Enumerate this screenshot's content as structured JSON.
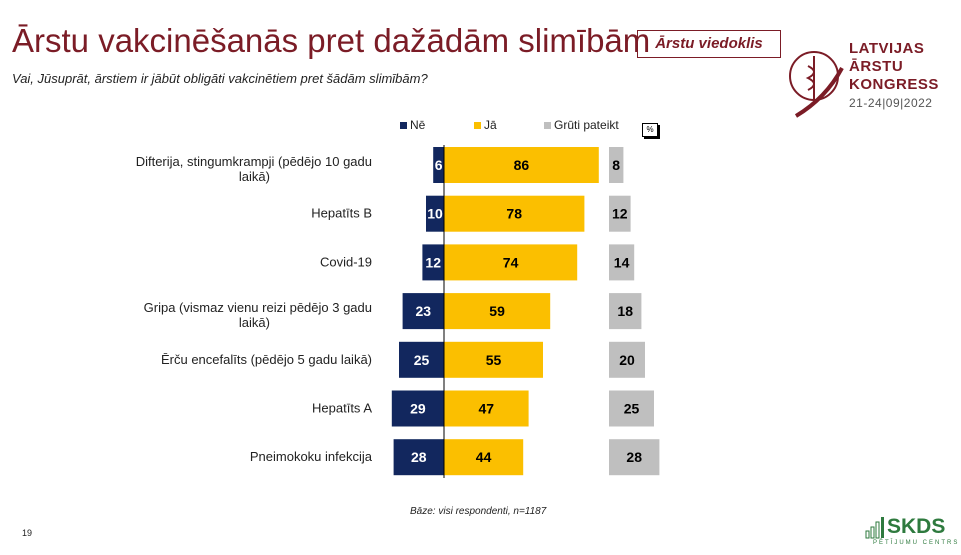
{
  "header": {
    "title": "Ārstu vakcinēšanās pret dažādām slimībām",
    "badge": "Ārstu viedoklis",
    "question": "Vai, Jūsuprāt, ārstiem ir jābūt obligāti vakcinētiem pret šādām slimībām?"
  },
  "logo": {
    "line1": "LATVIJAS",
    "line2": "ĀRSTU",
    "line3": "KONGRESS",
    "dates": "21-24|09|2022"
  },
  "footer": {
    "base": "Bāze: visi respondenti, n=1187",
    "page": "19",
    "brand": "SKDS",
    "brand_sub": "PĒTĪJUMU CENTRS"
  },
  "chart_data": {
    "type": "bar",
    "unit": "%",
    "categories": [
      "Difterija, stingumkrampji (pēdējo 10 gadu laikā)",
      "Hepatīts B",
      "Covid-19",
      "Gripa (vismaz vienu reizi pēdējo 3 gadu laikā)",
      "Ērču encefalīts (pēdējo 5 gadu laikā)",
      "Hepatīts A",
      "Pneimokoku infekcija"
    ],
    "series": [
      {
        "name": "Nē",
        "color": "#12275e",
        "values": [
          6,
          10,
          12,
          23,
          25,
          29,
          28
        ]
      },
      {
        "name": "Jā",
        "color": "#fbbf00",
        "values": [
          86,
          78,
          74,
          59,
          55,
          47,
          44
        ]
      },
      {
        "name": "Grūti pateikt",
        "color": "#bfbfbf",
        "values": [
          8,
          12,
          14,
          18,
          20,
          25,
          28
        ]
      }
    ]
  }
}
